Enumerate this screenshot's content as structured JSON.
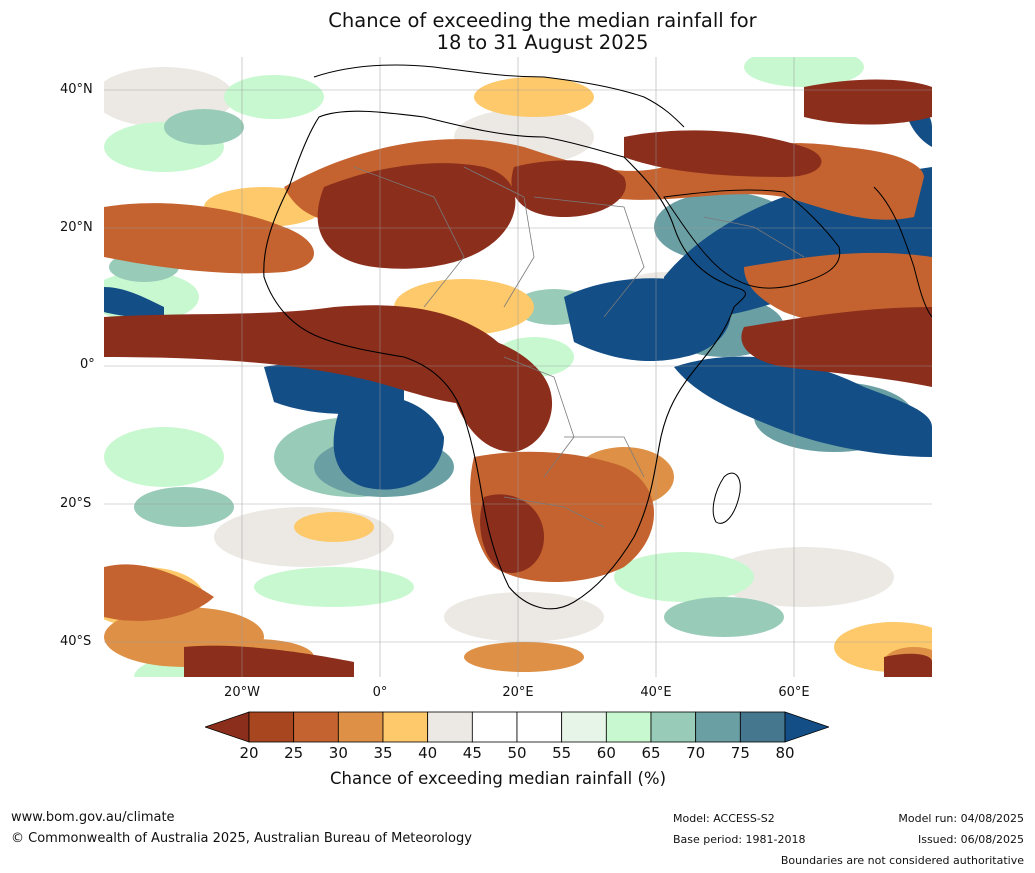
{
  "title": {
    "line1": "Chance of exceeding the median rainfall for",
    "line2": "18 to 31 August 2025"
  },
  "axes": {
    "lat_labels": [
      "40°N",
      "20°N",
      "0°",
      "20°S",
      "40°S"
    ],
    "lon_labels": [
      "20°W",
      "0°",
      "20°E",
      "40°E",
      "60°E"
    ]
  },
  "colorbar": {
    "label": "Chance of exceeding median rainfall (%)",
    "ticks": [
      "20",
      "25",
      "30",
      "35",
      "40",
      "45",
      "50",
      "55",
      "60",
      "65",
      "70",
      "75",
      "80"
    ],
    "colors": [
      "#8b2e1c",
      "#a8461f",
      "#c4632f",
      "#de9146",
      "#fec96a",
      "#ece9e4",
      "#ffffff",
      "#ffffff",
      "#e6f5e8",
      "#c8f8cf",
      "#98cbb8",
      "#6a9fa4",
      "#45788f",
      "#134e86"
    ]
  },
  "footer": {
    "website": "www.bom.gov.au/climate",
    "copyright": "© Commonwealth of Australia 2025, Australian Bureau of Meteorology",
    "model": "Model: ACCESS-S2",
    "base_period": "Base period: 1981-2018",
    "model_run": "Model run: 04/08/2025",
    "issued": "Issued: 06/08/2025",
    "disclaimer": "Boundaries are not considered authoritative"
  }
}
